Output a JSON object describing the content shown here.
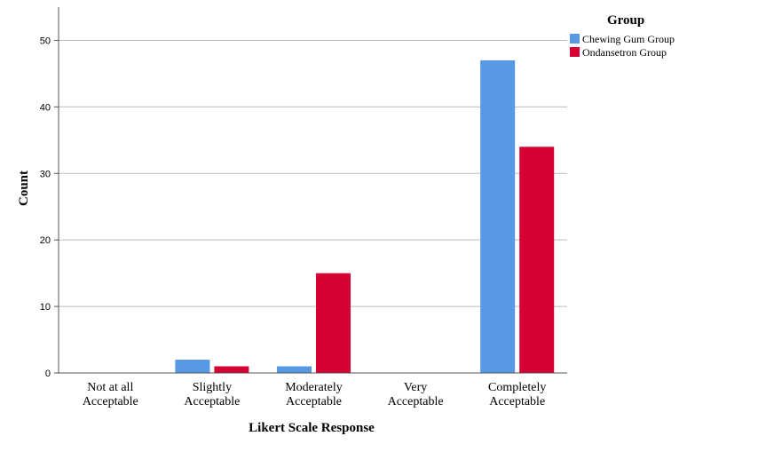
{
  "chart_data": {
    "type": "bar",
    "title": "",
    "xlabel": "Likert Scale Response",
    "ylabel": "Count",
    "categories": [
      [
        "Not at all",
        "Acceptable"
      ],
      [
        "Slightly",
        "Acceptable"
      ],
      [
        "Moderately",
        "Acceptable"
      ],
      [
        "Very",
        "Acceptable"
      ],
      [
        "Completely",
        "Acceptable"
      ]
    ],
    "series": [
      {
        "name": "Chewing Gum Group",
        "color": "#5899e5",
        "values": [
          0,
          2,
          1,
          0,
          47
        ]
      },
      {
        "name": "Ondansetron Group",
        "color": "#d70033",
        "values": [
          0,
          1,
          15,
          0,
          34
        ]
      }
    ],
    "ylim": [
      0,
      55
    ],
    "yticks": [
      0,
      10,
      20,
      30,
      40,
      50
    ],
    "grid": true,
    "legend": {
      "title": "Group",
      "placement": "top-right"
    }
  }
}
